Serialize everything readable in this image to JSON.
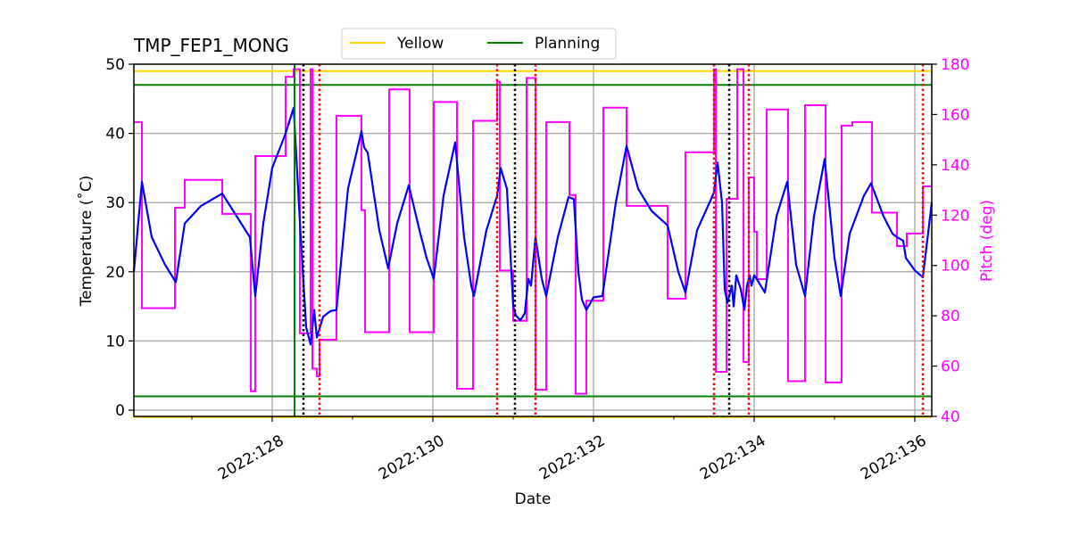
{
  "chart_data": {
    "type": "line",
    "title": "TMP_FEP1_MONG",
    "xlabel": "Date",
    "ylabel": "Temperature ($^\\circ$C)",
    "ylabel_display": "Temperature (˚C)",
    "y2label": "Pitch (deg)",
    "xlim": [
      126.278,
      136.211
    ],
    "ylim": [
      -0.9,
      50
    ],
    "y2lim": [
      40,
      180
    ],
    "grid": true,
    "legend_position": "top-center",
    "x_ticks": [
      {
        "v": 128,
        "label": "2022:128"
      },
      {
        "v": 130,
        "label": "2022:130"
      },
      {
        "v": 132,
        "label": "2022:132"
      },
      {
        "v": 134,
        "label": "2022:134"
      },
      {
        "v": 136,
        "label": "2022:136"
      }
    ],
    "x_minor_ticks": [
      127,
      129,
      131,
      133,
      135
    ],
    "y_ticks": [
      0,
      10,
      20,
      30,
      40,
      50
    ],
    "y2_ticks": [
      40,
      60,
      80,
      100,
      120,
      140,
      160,
      180
    ],
    "colors": {
      "temperature": "#0000ff",
      "pitch": "#ff00ff",
      "yellow": "#ffd700",
      "planning": "#008000",
      "grid": "#b0b0b0",
      "red_marker": "#ff0000",
      "black_marker": "#000000",
      "y2_axis": "#ff00ff"
    },
    "legend": [
      {
        "name": "Yellow",
        "color": "#ffd700"
      },
      {
        "name": "Planning",
        "color": "#008000"
      }
    ],
    "limit_lines": [
      {
        "series": "Yellow",
        "value": 49
      },
      {
        "series": "Yellow",
        "value": -1
      },
      {
        "series": "Planning",
        "value": 47
      },
      {
        "series": "Planning",
        "value": 2
      }
    ],
    "vertical_lines": {
      "green_solid": [
        128.278
      ],
      "black_dotted": [
        128.389,
        131.022,
        133.689
      ],
      "red_dotted": [
        128.589,
        130.8,
        131.278,
        133.5,
        133.933,
        136.1
      ]
    },
    "temperature": [
      [
        126.278,
        20
      ],
      [
        126.378,
        33
      ],
      [
        126.5,
        25
      ],
      [
        126.667,
        21
      ],
      [
        126.8,
        18.5
      ],
      [
        126.911,
        27
      ],
      [
        127.111,
        29.5
      ],
      [
        127.378,
        31.3
      ],
      [
        127.722,
        25
      ],
      [
        127.789,
        16.5
      ],
      [
        127.889,
        27
      ],
      [
        128.0,
        35
      ],
      [
        128.167,
        40
      ],
      [
        128.267,
        43.7
      ],
      [
        128.356,
        25
      ],
      [
        128.422,
        12
      ],
      [
        128.478,
        9.5
      ],
      [
        128.522,
        14.5
      ],
      [
        128.556,
        10.5
      ],
      [
        128.633,
        13.5
      ],
      [
        128.722,
        14.3
      ],
      [
        128.8,
        14.5
      ],
      [
        128.944,
        32
      ],
      [
        129.111,
        40.3
      ],
      [
        129.144,
        38
      ],
      [
        129.189,
        37.2
      ],
      [
        129.333,
        26
      ],
      [
        129.444,
        20.5
      ],
      [
        129.556,
        27
      ],
      [
        129.7,
        32.5
      ],
      [
        129.833,
        26
      ],
      [
        129.922,
        22
      ],
      [
        130.011,
        19
      ],
      [
        130.133,
        31
      ],
      [
        130.278,
        38.7
      ],
      [
        130.389,
        25
      ],
      [
        130.478,
        18
      ],
      [
        130.511,
        16.5
      ],
      [
        130.667,
        26
      ],
      [
        130.8,
        31
      ],
      [
        130.844,
        35
      ],
      [
        130.922,
        32
      ],
      [
        131.0,
        15
      ],
      [
        131.033,
        13.7
      ],
      [
        131.089,
        13
      ],
      [
        131.144,
        14
      ],
      [
        131.189,
        19
      ],
      [
        131.222,
        18
      ],
      [
        131.278,
        25
      ],
      [
        131.356,
        19
      ],
      [
        131.411,
        16.5
      ],
      [
        131.556,
        25
      ],
      [
        131.689,
        30.8
      ],
      [
        131.756,
        30.5
      ],
      [
        131.811,
        20
      ],
      [
        131.856,
        16
      ],
      [
        131.911,
        14.5
      ],
      [
        132.0,
        16.3
      ],
      [
        132.111,
        16.5
      ],
      [
        132.278,
        30
      ],
      [
        132.411,
        38.2
      ],
      [
        132.556,
        32
      ],
      [
        132.722,
        28.8
      ],
      [
        132.922,
        26.7
      ],
      [
        133.056,
        20
      ],
      [
        133.144,
        17
      ],
      [
        133.289,
        26
      ],
      [
        133.444,
        30
      ],
      [
        133.5,
        31.5
      ],
      [
        133.544,
        35.8
      ],
      [
        133.6,
        30
      ],
      [
        133.633,
        17.5
      ],
      [
        133.667,
        15.5
      ],
      [
        133.7,
        17
      ],
      [
        133.722,
        18
      ],
      [
        133.744,
        15
      ],
      [
        133.778,
        19.5
      ],
      [
        133.833,
        17.5
      ],
      [
        133.878,
        14.5
      ],
      [
        133.911,
        18
      ],
      [
        133.944,
        19.5
      ],
      [
        133.967,
        18
      ],
      [
        134.0,
        19.5
      ],
      [
        134.056,
        18.5
      ],
      [
        134.133,
        17
      ],
      [
        134.278,
        28
      ],
      [
        134.411,
        33
      ],
      [
        134.522,
        21
      ],
      [
        134.633,
        16.5
      ],
      [
        134.744,
        28
      ],
      [
        134.878,
        36.3
      ],
      [
        135.0,
        22
      ],
      [
        135.078,
        16.5
      ],
      [
        135.189,
        25.5
      ],
      [
        135.367,
        31
      ],
      [
        135.456,
        32.8
      ],
      [
        135.611,
        28
      ],
      [
        135.722,
        25.5
      ],
      [
        135.778,
        25
      ],
      [
        135.856,
        24.5
      ],
      [
        135.889,
        22
      ],
      [
        136.0,
        20.2
      ],
      [
        136.1,
        19.2
      ],
      [
        136.211,
        30
      ]
    ],
    "pitch_steps": [
      [
        126.278,
        157
      ],
      [
        126.378,
        83
      ],
      [
        126.789,
        123
      ],
      [
        126.911,
        134
      ],
      [
        127.378,
        120.5
      ],
      [
        127.733,
        50
      ],
      [
        127.789,
        143.5
      ],
      [
        128.167,
        175
      ],
      [
        128.267,
        178
      ],
      [
        128.344,
        73
      ],
      [
        128.478,
        178
      ],
      [
        128.5,
        59
      ],
      [
        128.556,
        56
      ],
      [
        128.589,
        70.5
      ],
      [
        128.8,
        159.5
      ],
      [
        129.111,
        122
      ],
      [
        129.156,
        73.5
      ],
      [
        129.456,
        170
      ],
      [
        129.711,
        73.5
      ],
      [
        130.011,
        165
      ],
      [
        130.3,
        51
      ],
      [
        130.5,
        157.5
      ],
      [
        130.8,
        173
      ],
      [
        130.833,
        98
      ],
      [
        131.0,
        78
      ],
      [
        131.167,
        174.5
      ],
      [
        131.278,
        50.6
      ],
      [
        131.411,
        157
      ],
      [
        131.7,
        128
      ],
      [
        131.778,
        49
      ],
      [
        131.911,
        86
      ],
      [
        132.122,
        162.7
      ],
      [
        132.411,
        123.7
      ],
      [
        132.922,
        86.8
      ],
      [
        133.144,
        145
      ],
      [
        133.5,
        178
      ],
      [
        133.522,
        57.7
      ],
      [
        133.656,
        126.5
      ],
      [
        133.789,
        178
      ],
      [
        133.867,
        61.6
      ],
      [
        133.933,
        135
      ],
      [
        134.0,
        113.4
      ],
      [
        134.033,
        94.6
      ],
      [
        134.156,
        162
      ],
      [
        134.422,
        54
      ],
      [
        134.633,
        163.7
      ],
      [
        134.889,
        53.5
      ],
      [
        135.089,
        155.6
      ],
      [
        135.222,
        157
      ],
      [
        135.467,
        121
      ],
      [
        135.778,
        107.7
      ],
      [
        135.9,
        112.7
      ],
      [
        136.1,
        131.5
      ]
    ]
  }
}
